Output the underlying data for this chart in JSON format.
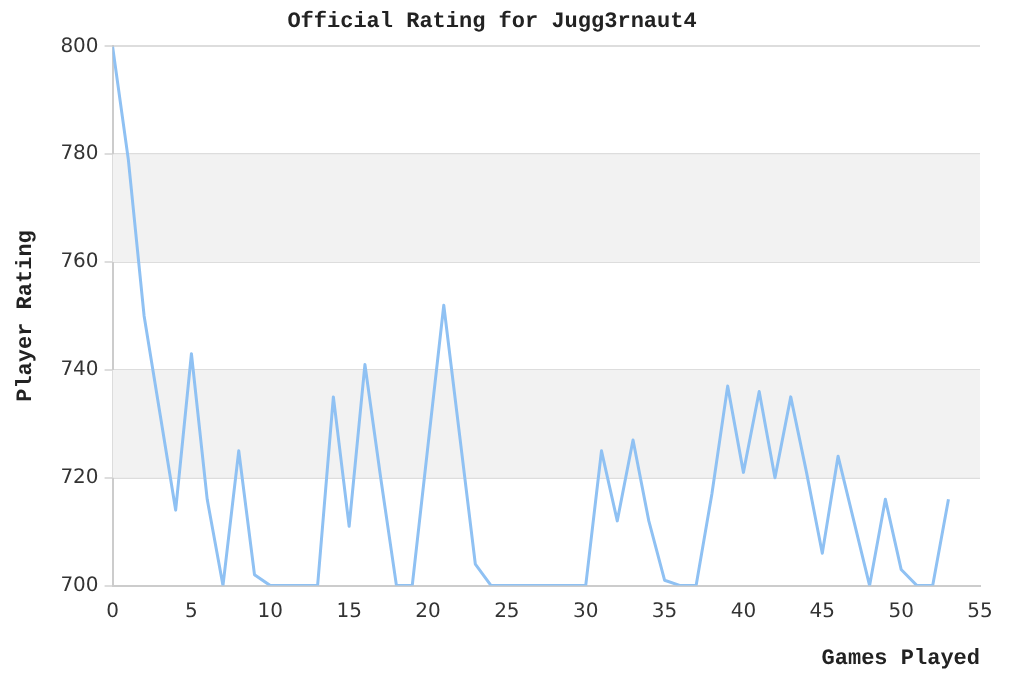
{
  "chart_data": {
    "type": "line",
    "title": "Official Rating for Jugg3rnaut4",
    "xlabel": "Games Played",
    "ylabel": "Player Rating",
    "x": [
      0,
      1,
      2,
      3,
      4,
      5,
      6,
      7,
      8,
      9,
      10,
      11,
      12,
      13,
      14,
      15,
      16,
      17,
      18,
      19,
      20,
      21,
      22,
      23,
      24,
      25,
      26,
      27,
      28,
      29,
      30,
      31,
      32,
      33,
      34,
      35,
      36,
      37,
      38,
      39,
      40,
      41,
      42,
      43,
      44,
      45,
      46,
      47,
      48,
      49,
      50,
      51,
      52,
      53
    ],
    "series": [
      {
        "color": "#8fc1f3",
        "values": [
          800,
          779,
          750,
          732,
          714,
          743,
          716,
          700,
          725,
          702,
          700,
          700,
          700,
          700,
          735,
          711,
          741,
          720,
          700,
          700,
          726,
          752,
          728,
          704,
          700,
          700,
          700,
          700,
          700,
          700,
          700,
          725,
          712,
          727,
          712,
          701,
          700,
          700,
          717,
          737,
          721,
          736,
          720,
          735,
          721,
          706,
          724,
          712,
          700,
          716,
          703,
          700,
          700,
          716
        ]
      }
    ],
    "xlim": [
      0,
      55
    ],
    "xticks": [
      0,
      5,
      10,
      15,
      20,
      25,
      30,
      35,
      40,
      45,
      50,
      55
    ],
    "ylim": [
      700,
      800
    ],
    "yticks": [
      700,
      720,
      740,
      760,
      780,
      800
    ],
    "bands": [
      {
        "axis": "y",
        "from": 720,
        "to": 740,
        "color": "#f2f2f2"
      },
      {
        "axis": "y",
        "from": 760,
        "to": 780,
        "color": "#f2f2f2"
      }
    ],
    "grid": "y",
    "legend": false,
    "marker": "none",
    "line_style": "solid"
  }
}
